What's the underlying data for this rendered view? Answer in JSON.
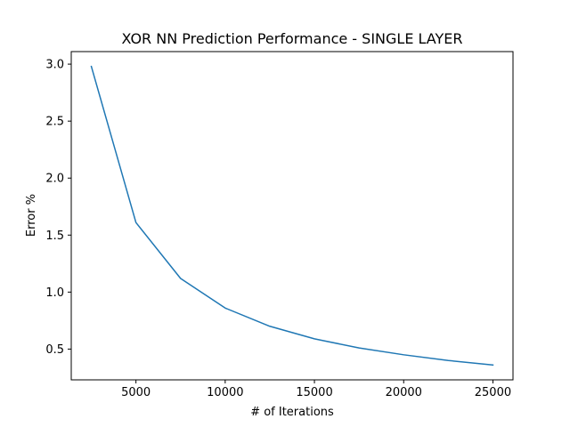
{
  "chart_data": {
    "type": "line",
    "title": "XOR NN Prediction Performance - SINGLE LAYER",
    "xlabel": "# of Iterations",
    "ylabel": "Error %",
    "xlim": [
      1375,
      26125
    ],
    "ylim": [
      0.23,
      3.11
    ],
    "xticks": [
      5000,
      10000,
      15000,
      20000,
      25000
    ],
    "xtick_labels": [
      "5000",
      "10000",
      "15000",
      "20000",
      "25000"
    ],
    "yticks": [
      0.5,
      1.0,
      1.5,
      2.0,
      2.5,
      3.0
    ],
    "ytick_labels": [
      "0.5",
      "1.0",
      "1.5",
      "2.0",
      "2.5",
      "3.0"
    ],
    "grid": false,
    "legend": "none",
    "series": [
      {
        "color": "#1f77b4",
        "x": [
          2500,
          5000,
          7500,
          10000,
          12500,
          15000,
          17500,
          20000,
          22500,
          25000
        ],
        "y": [
          2.98,
          1.61,
          1.12,
          0.86,
          0.7,
          0.59,
          0.51,
          0.45,
          0.4,
          0.36
        ]
      }
    ]
  }
}
